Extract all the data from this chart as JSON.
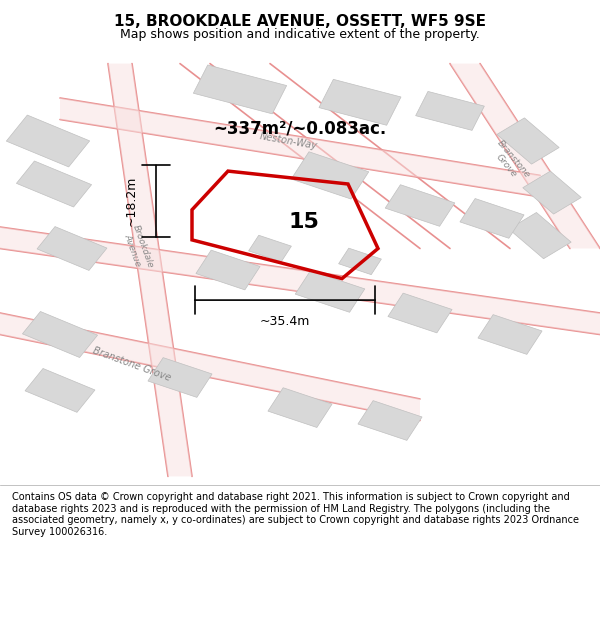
{
  "title_line1": "15, BROOKDALE AVENUE, OSSETT, WF5 9SE",
  "title_line2": "Map shows position and indicative extent of the property.",
  "footer_text": "Contains OS data © Crown copyright and database right 2021. This information is subject to Crown copyright and database rights 2023 and is reproduced with the permission of HM Land Registry. The polygons (including the associated geometry, namely x, y co-ordinates) are subject to Crown copyright and database rights 2023 Ordnance Survey 100026316.",
  "area_label": "~337m²/~0.083ac.",
  "house_number": "15",
  "width_label": "~35.4m",
  "height_label": "~18.2m",
  "map_bg": "#f5f5f5",
  "road_color_light": "#f0b8b8",
  "road_color_mid": "#e89090",
  "building_fill": "#d8d8d8",
  "building_edge": "#c0c0c0",
  "plot_fill": "none",
  "plot_edge": "#cc0000",
  "plot_lw": 2.5,
  "text_color": "#000000",
  "title_bg": "#ffffff",
  "footer_bg": "#ffffff",
  "map_border_color": "#aaaaaa"
}
